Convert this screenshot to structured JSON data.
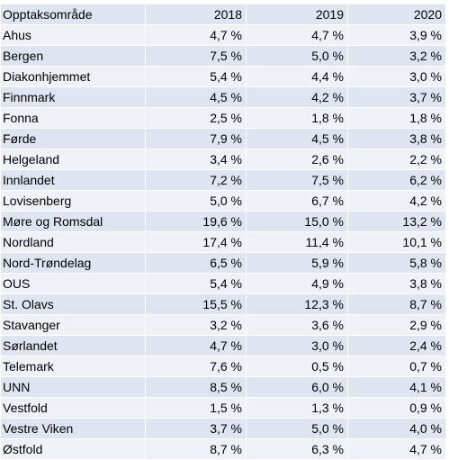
{
  "table": {
    "columns": [
      "Opptaksområde",
      "2018",
      "2019",
      "2020"
    ],
    "rows": [
      [
        "Ahus",
        "4,7 %",
        "4,7 %",
        "3,9 %"
      ],
      [
        "Bergen",
        "7,5 %",
        "5,0 %",
        "3,2 %"
      ],
      [
        "Diakonhjemmet",
        "5,4 %",
        "4,4 %",
        "3,0 %"
      ],
      [
        "Finnmark",
        "4,5 %",
        "4,2 %",
        "3,7 %"
      ],
      [
        "Fonna",
        "2,5 %",
        "1,8 %",
        "1,8 %"
      ],
      [
        "Førde",
        "7,9 %",
        "4,5 %",
        "3,8 %"
      ],
      [
        "Helgeland",
        "3,4 %",
        "2,6 %",
        "2,2 %"
      ],
      [
        "Innlandet",
        "7,2 %",
        "7,5 %",
        "6,2 %"
      ],
      [
        "Lovisenberg",
        "5,0 %",
        "6,7 %",
        "4,2 %"
      ],
      [
        "Møre og Romsdal",
        "19,6 %",
        "15,0 %",
        "13,2 %"
      ],
      [
        "Nordland",
        "17,4 %",
        "11,4 %",
        "10,1 %"
      ],
      [
        "Nord-Trøndelag",
        "6,5 %",
        "5,9 %",
        "5,8 %"
      ],
      [
        "OUS",
        "5,4 %",
        "4,9 %",
        "3,8 %"
      ],
      [
        "St. Olavs",
        "15,5 %",
        "12,3 %",
        "8,7 %"
      ],
      [
        "Stavanger",
        "3,2 %",
        "3,6 %",
        "2,9 %"
      ],
      [
        "Sørlandet",
        "4,7 %",
        "3,0 %",
        "2,4 %"
      ],
      [
        "Telemark",
        "7,6 %",
        "0,5 %",
        "0,7 %"
      ],
      [
        "UNN",
        "8,5 %",
        "6,0 %",
        "4,1 %"
      ],
      [
        "Vestfold",
        "1,5 %",
        "1,3 %",
        "0,9 %"
      ],
      [
        "Vestre Viken",
        "3,7 %",
        "5,0 %",
        "4,0 %"
      ],
      [
        "Østfold",
        "8,7 %",
        "6,3 %",
        "4,7 %"
      ]
    ]
  },
  "colors": {
    "band": "#dfe5f0",
    "plain": "#eef1f7"
  }
}
